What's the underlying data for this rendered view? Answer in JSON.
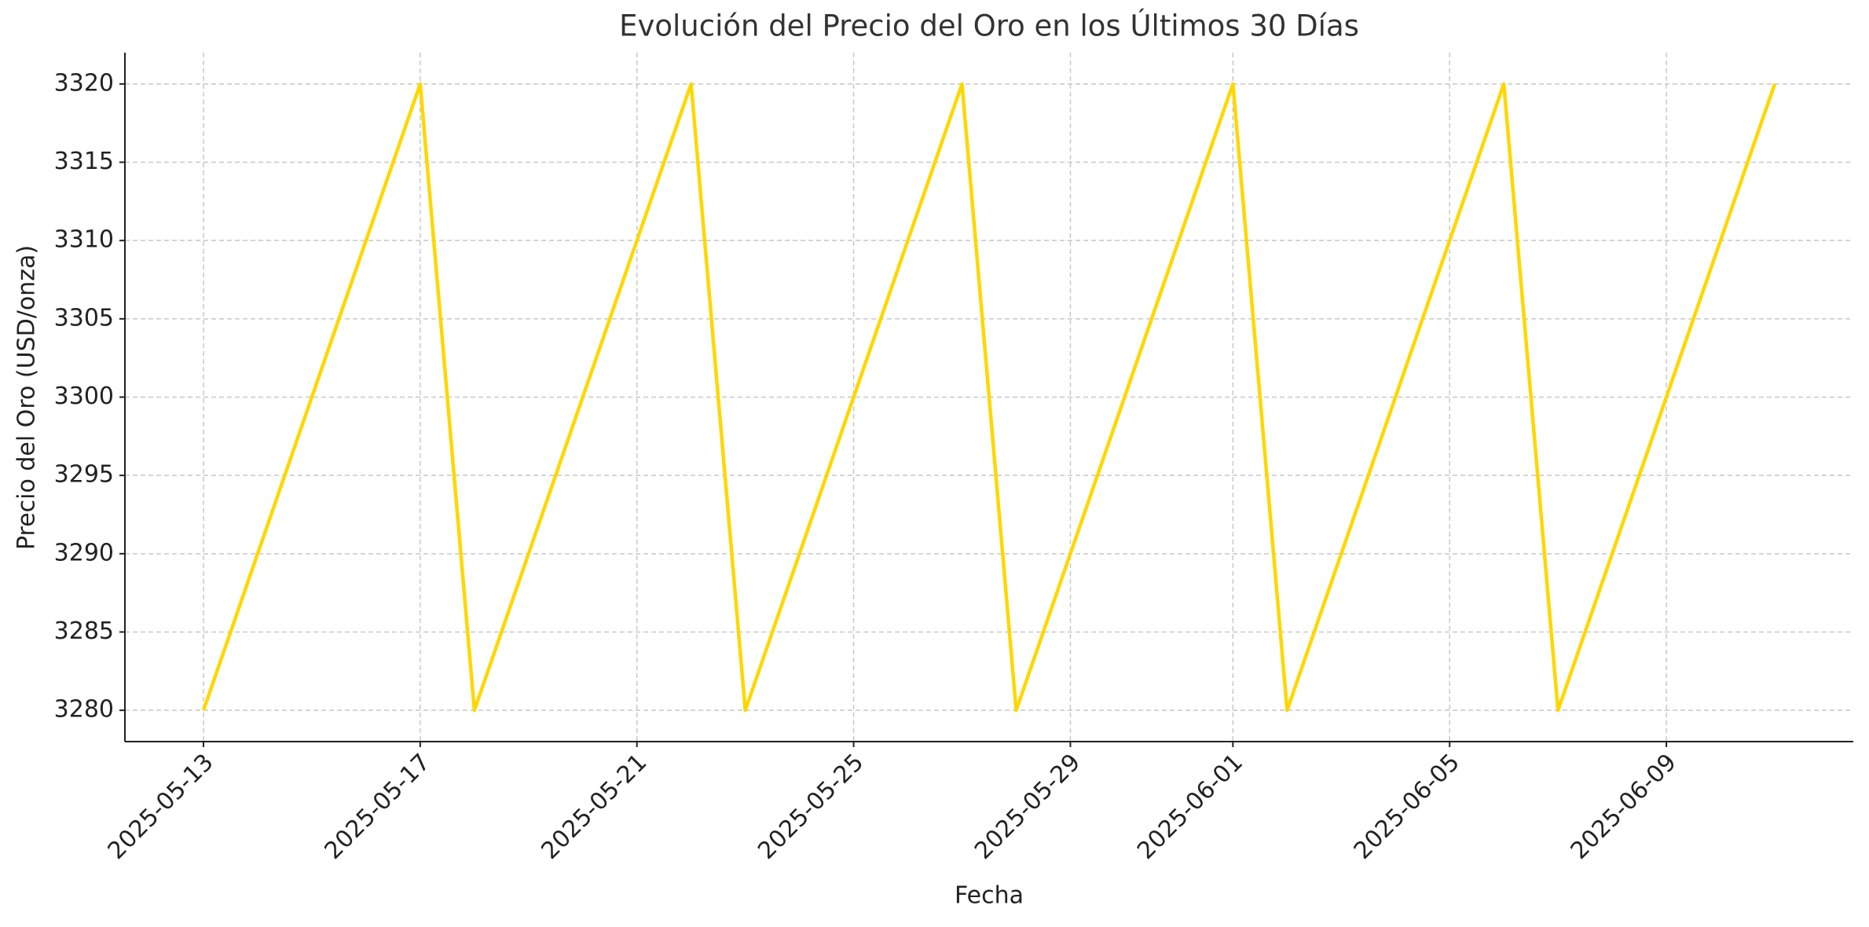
{
  "chart_data": {
    "type": "line",
    "title": "Evolución del Precio del Oro en los Últimos 30 Días",
    "x_label": "Fecha",
    "y_label": "Precio del Oro (USD/onza)",
    "x": [
      "2025-05-13",
      "2025-05-14",
      "2025-05-15",
      "2025-05-16",
      "2025-05-17",
      "2025-05-18",
      "2025-05-19",
      "2025-05-20",
      "2025-05-21",
      "2025-05-22",
      "2025-05-23",
      "2025-05-24",
      "2025-05-25",
      "2025-05-26",
      "2025-05-27",
      "2025-05-28",
      "2025-05-29",
      "2025-05-30",
      "2025-05-31",
      "2025-06-01",
      "2025-06-02",
      "2025-06-03",
      "2025-06-04",
      "2025-06-05",
      "2025-06-06",
      "2025-06-07",
      "2025-06-08",
      "2025-06-09",
      "2025-06-10",
      "2025-06-11"
    ],
    "series": [
      {
        "name": "Precio del Oro",
        "color": "#ffd700",
        "values": [
          3280,
          3290,
          3300,
          3310,
          3320,
          3280,
          3290,
          3300,
          3310,
          3320,
          3280,
          3290,
          3300,
          3310,
          3320,
          3280,
          3290,
          3300,
          3310,
          3320,
          3280,
          3290,
          3300,
          3310,
          3320,
          3280,
          3290,
          3300,
          3310,
          3320
        ]
      }
    ],
    "xlim": [
      "2025-05-11T13:12",
      "2025-06-12T10:48"
    ],
    "xticks": [
      "2025-05-13",
      "2025-05-17",
      "2025-05-21",
      "2025-05-25",
      "2025-05-29",
      "2025-06-01",
      "2025-06-05",
      "2025-06-09"
    ],
    "ylim": [
      3278,
      3322
    ],
    "yticks": [
      3280,
      3285,
      3290,
      3295,
      3300,
      3305,
      3310,
      3315,
      3320
    ],
    "grid": true
  }
}
